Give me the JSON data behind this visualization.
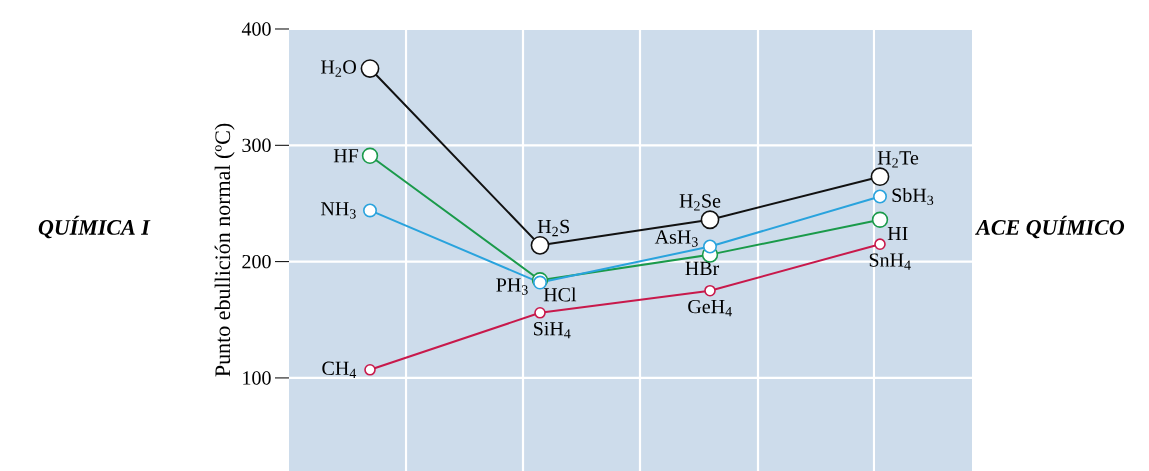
{
  "chart_data": {
    "type": "line",
    "ylabel": "Punto ebullición normal (ºC)",
    "categories": [
      null,
      null,
      null,
      null
    ],
    "ylim": [
      20,
      400
    ],
    "yticks": [
      100,
      200,
      300,
      400
    ],
    "grid": true,
    "marker": "circle",
    "line_style": "solid",
    "series": [
      {
        "color": "#111111",
        "values": [
          366,
          214,
          236,
          273
        ]
      },
      {
        "color": "#1a9a4a",
        "values": [
          291,
          184,
          206,
          236
        ]
      },
      {
        "color": "#29a3dd",
        "values": [
          244,
          182,
          213,
          256
        ]
      },
      {
        "color": "#c8194b",
        "values": [
          107,
          156,
          175,
          215
        ]
      }
    ],
    "annotations": [
      "QUÍMICA I",
      "ACE QUÍMICO",
      "H$_{2}$O",
      "H$_{2}$S",
      "H$_{2}$Se",
      "H$_{2}$Te",
      "HF",
      "HCl",
      "HBr",
      "HI",
      "NH$_{3}$",
      "PH$_{3}$",
      "AsH$_{3}$",
      "SbH$_{3}$",
      "CH$_{4}$",
      "SiH$_{4}$",
      "GeH$_{4}$",
      "SnH$_{4}$"
    ]
  }
}
